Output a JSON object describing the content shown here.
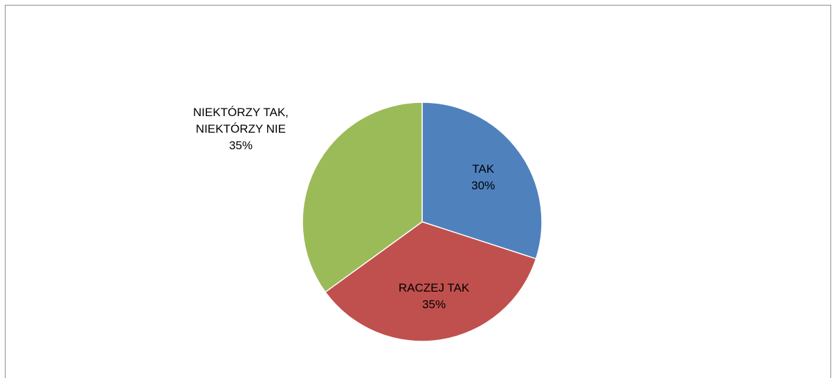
{
  "chart_data": {
    "type": "pie",
    "categories": [
      "TAK",
      "RACZEJ TAK",
      "NIEKTÓRZY TAK, NIEKTÓRZY NIE"
    ],
    "values": [
      30,
      35,
      35
    ],
    "value_labels": [
      "30%",
      "35%",
      "35%"
    ],
    "colors": [
      "#4f81bd",
      "#c0504d",
      "#9bbb59"
    ]
  }
}
